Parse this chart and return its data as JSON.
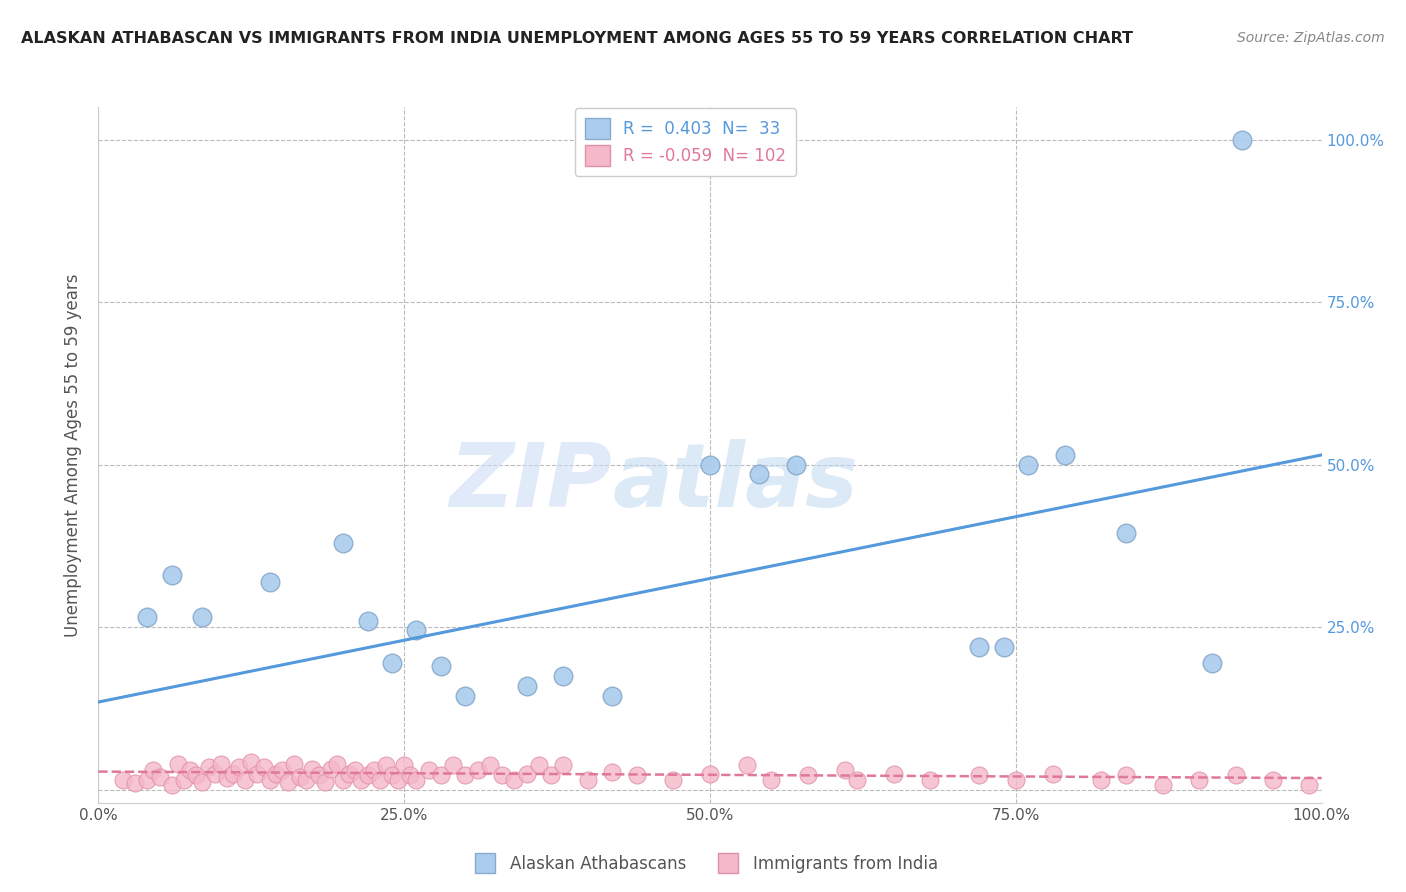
{
  "title": "ALASKAN ATHABASCAN VS IMMIGRANTS FROM INDIA UNEMPLOYMENT AMONG AGES 55 TO 59 YEARS CORRELATION CHART",
  "source": "Source: ZipAtlas.com",
  "ylabel": "Unemployment Among Ages 55 to 59 years",
  "xlim": [
    0.0,
    1.0
  ],
  "ylim": [
    -0.02,
    1.05
  ],
  "xticks": [
    0.0,
    0.25,
    0.5,
    0.75,
    1.0
  ],
  "xticklabels": [
    "0.0%",
    "25.0%",
    "50.0%",
    "75.0%",
    "100.0%"
  ],
  "yticks": [
    0.0,
    0.25,
    0.5,
    0.75,
    1.0
  ],
  "yticklabels": [
    "",
    "25.0%",
    "50.0%",
    "75.0%",
    "100.0%"
  ],
  "R_blue": 0.403,
  "N_blue": 33,
  "R_pink": -0.059,
  "N_pink": 102,
  "blue_color": "#aaccee",
  "blue_edge": "#88aacc",
  "pink_color": "#f5b8c8",
  "pink_edge": "#e090a8",
  "blue_line_color": "#5599dd",
  "pink_line_color": "#e07898",
  "watermark_zip": "ZIP",
  "watermark_atlas": "atlas",
  "background_color": "#ffffff",
  "grid_color": "#bbbbbb",
  "title_color": "#222222",
  "blue_scatter_x": [
    0.04,
    0.085,
    0.06,
    0.14,
    0.2,
    0.22,
    0.24,
    0.26,
    0.28,
    0.3,
    0.35,
    0.38,
    0.42,
    0.5,
    0.54,
    0.57,
    0.72,
    0.74,
    0.76,
    0.79,
    0.84,
    0.91,
    0.935
  ],
  "blue_scatter_y": [
    0.265,
    0.265,
    0.33,
    0.32,
    0.38,
    0.26,
    0.195,
    0.245,
    0.19,
    0.145,
    0.16,
    0.175,
    0.145,
    0.5,
    0.485,
    0.5,
    0.22,
    0.22,
    0.5,
    0.515,
    0.395,
    0.195,
    1.0
  ],
  "pink_scatter_x": [
    0.02,
    0.03,
    0.04,
    0.045,
    0.05,
    0.06,
    0.065,
    0.07,
    0.075,
    0.08,
    0.085,
    0.09,
    0.095,
    0.1,
    0.105,
    0.11,
    0.115,
    0.12,
    0.125,
    0.13,
    0.135,
    0.14,
    0.145,
    0.15,
    0.155,
    0.16,
    0.165,
    0.17,
    0.175,
    0.18,
    0.185,
    0.19,
    0.195,
    0.2,
    0.205,
    0.21,
    0.215,
    0.22,
    0.225,
    0.23,
    0.235,
    0.24,
    0.245,
    0.25,
    0.255,
    0.26,
    0.27,
    0.28,
    0.29,
    0.3,
    0.31,
    0.32,
    0.33,
    0.34,
    0.35,
    0.36,
    0.37,
    0.38,
    0.4,
    0.42,
    0.44,
    0.47,
    0.5,
    0.53,
    0.55,
    0.58,
    0.61,
    0.62,
    0.65,
    0.68,
    0.72,
    0.75,
    0.78,
    0.82,
    0.84,
    0.87,
    0.9,
    0.93,
    0.96,
    0.99
  ],
  "pink_scatter_y": [
    0.015,
    0.01,
    0.015,
    0.03,
    0.02,
    0.008,
    0.04,
    0.015,
    0.03,
    0.022,
    0.012,
    0.035,
    0.025,
    0.04,
    0.018,
    0.025,
    0.035,
    0.015,
    0.042,
    0.025,
    0.035,
    0.015,
    0.025,
    0.03,
    0.012,
    0.04,
    0.02,
    0.015,
    0.032,
    0.022,
    0.012,
    0.032,
    0.04,
    0.015,
    0.025,
    0.03,
    0.015,
    0.022,
    0.03,
    0.015,
    0.038,
    0.022,
    0.015,
    0.038,
    0.022,
    0.015,
    0.03,
    0.022,
    0.038,
    0.022,
    0.03,
    0.038,
    0.022,
    0.015,
    0.025,
    0.038,
    0.022,
    0.038,
    0.015,
    0.028,
    0.022,
    0.015,
    0.025,
    0.038,
    0.015,
    0.022,
    0.03,
    0.015,
    0.025,
    0.015,
    0.022,
    0.015,
    0.025,
    0.015,
    0.022,
    0.008,
    0.015,
    0.022,
    0.015,
    0.008
  ],
  "blue_line_x0": 0.0,
  "blue_line_x1": 1.0,
  "blue_line_y0": 0.135,
  "blue_line_y1": 0.515,
  "pink_line_x0": 0.0,
  "pink_line_x1": 1.0,
  "pink_line_y0": 0.028,
  "pink_line_y1": 0.018
}
